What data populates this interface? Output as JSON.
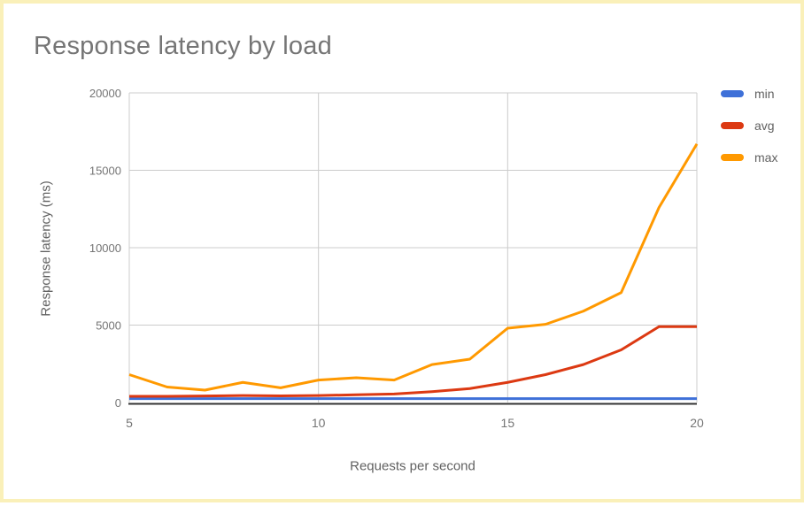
{
  "chart": {
    "title": "Response latency by load",
    "xlabel": "Requests per second",
    "ylabel": "Response latency (ms)"
  },
  "chart_data": {
    "type": "line",
    "title": "Response latency by load",
    "xlabel": "Requests per second",
    "ylabel": "Response latency (ms)",
    "x": [
      5,
      6,
      7,
      8,
      9,
      10,
      11,
      12,
      13,
      14,
      15,
      16,
      17,
      18,
      19,
      20
    ],
    "series": [
      {
        "name": "min",
        "color": "#3e70d8",
        "values": [
          250,
          250,
          250,
          250,
          250,
          250,
          250,
          250,
          250,
          250,
          250,
          250,
          250,
          250,
          250,
          250
        ]
      },
      {
        "name": "avg",
        "color": "#dc3912",
        "values": [
          400,
          400,
          420,
          450,
          430,
          450,
          500,
          550,
          700,
          900,
          1300,
          1800,
          2450,
          3400,
          4900,
          4900
        ]
      },
      {
        "name": "max",
        "color": "#ff9900",
        "values": [
          1800,
          1000,
          800,
          1300,
          950,
          1450,
          1600,
          1450,
          2450,
          2800,
          4800,
          5050,
          5900,
          7100,
          12600,
          16700
        ]
      }
    ],
    "xlim": [
      5,
      20
    ],
    "ylim": [
      0,
      20000
    ],
    "x_ticks": [
      "5",
      "10",
      "15",
      "20"
    ],
    "y_ticks": [
      "0",
      "5000",
      "10000",
      "15000",
      "20000"
    ],
    "grid": true,
    "legend_position": "right"
  },
  "style": {
    "gridline_color": "#cccccc",
    "axis_line_color": "#333333",
    "tick_text_color": "#757575",
    "title_color": "#757575",
    "card_border_color": "#faf0b9"
  }
}
